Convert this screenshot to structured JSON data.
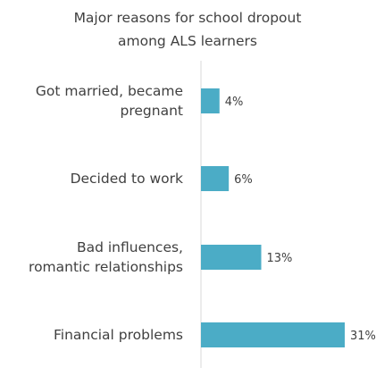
{
  "chart_data": {
    "type": "bar",
    "orientation": "horizontal",
    "title_lines": [
      "Major reasons for school dropout",
      "among ALS learners"
    ],
    "categories": [
      [
        "Got married, became",
        "pregnant"
      ],
      [
        "Decided to work"
      ],
      [
        "Bad influences,",
        "romantic relationships"
      ],
      [
        "Financial problems"
      ]
    ],
    "values": [
      4,
      6,
      13,
      31
    ],
    "value_labels": [
      "4%",
      "6%",
      "13%",
      "31%"
    ],
    "xlim": [
      0,
      31
    ],
    "grid": false,
    "legend": "none",
    "bar_color": "#4bacc6",
    "axis_color": "#d9d9d9"
  }
}
